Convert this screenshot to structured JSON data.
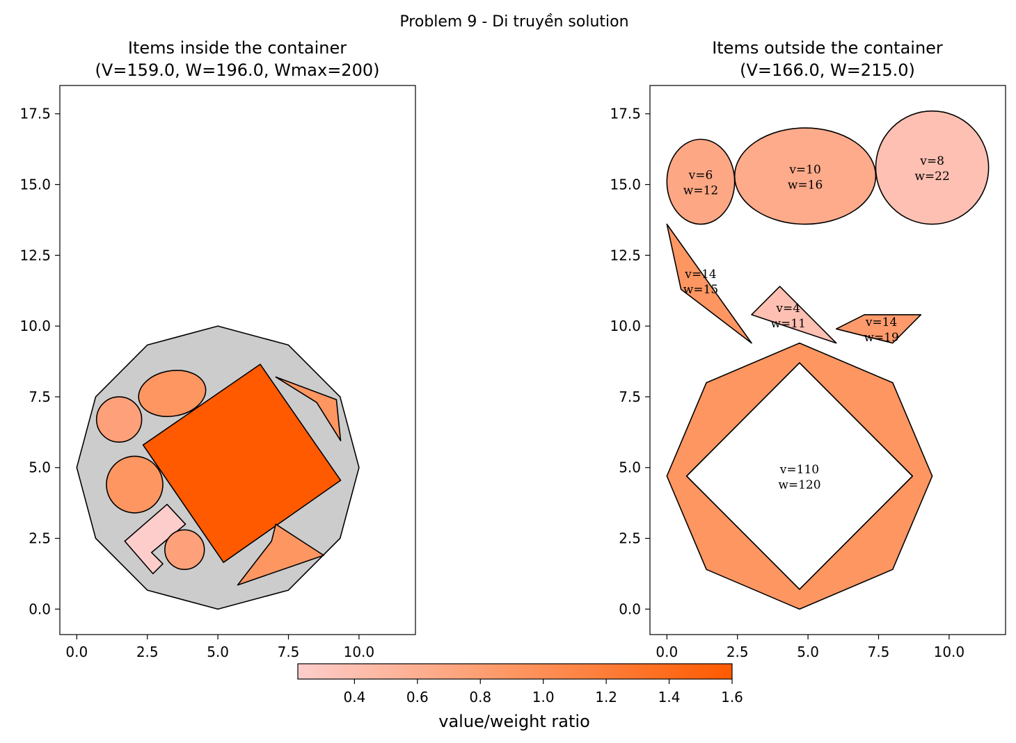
{
  "figure": {
    "suptitle": "Problem 9 - Di truyền solution",
    "colorbar": {
      "label": "value/weight ratio",
      "min": 0.22,
      "max": 1.6,
      "ticks": [
        "0.4",
        "0.6",
        "0.8",
        "1.0",
        "1.2",
        "1.4",
        "1.6"
      ],
      "color_low": "#fdcdcb",
      "color_mid": "#fe9662",
      "color_high": "#ff5a00"
    }
  },
  "chart_data": [
    {
      "type": "scatter",
      "title_line1": "Items inside the container",
      "title_line2": "(V=159.0, W=196.0, Wmax=200)",
      "xlim": [
        -0.6,
        12.0
      ],
      "ylim": [
        -0.9,
        18.5
      ],
      "xticks": [
        0.0,
        2.5,
        5.0,
        7.5,
        10.0
      ],
      "yticks": [
        0.0,
        2.5,
        5.0,
        7.5,
        10.0,
        12.5,
        15.0,
        17.5
      ],
      "container": {
        "color": "#cccccc",
        "points": [
          [
            5.0,
            10.0
          ],
          [
            7.5,
            9.33
          ],
          [
            9.33,
            7.5
          ],
          [
            10.0,
            5.0
          ],
          [
            9.33,
            2.5
          ],
          [
            7.5,
            0.67
          ],
          [
            5.0,
            0.0
          ],
          [
            2.5,
            0.67
          ],
          [
            0.67,
            2.5
          ],
          [
            0.0,
            5.0
          ],
          [
            0.67,
            7.5
          ],
          [
            2.5,
            9.33
          ]
        ]
      },
      "items": [
        {
          "shape": "polygon",
          "color": "#ff5a00",
          "points": [
            [
              6.5,
              8.65
            ],
            [
              9.35,
              4.55
            ],
            [
              5.2,
              1.65
            ],
            [
              2.35,
              5.8
            ]
          ]
        },
        {
          "shape": "polygon",
          "color": "#fe9662",
          "points": [
            [
              7.05,
              8.2
            ],
            [
              9.2,
              7.4
            ],
            [
              9.35,
              5.95
            ],
            [
              8.5,
              7.3
            ]
          ]
        },
        {
          "shape": "polygon",
          "color": "#fe9662",
          "points": [
            [
              7.05,
              3.0
            ],
            [
              8.75,
              1.9
            ],
            [
              5.7,
              0.85
            ],
            [
              6.9,
              2.4
            ]
          ]
        },
        {
          "shape": "polygon",
          "color": "#fdcdcb",
          "points": [
            [
              3.2,
              3.7
            ],
            [
              3.85,
              3.0
            ],
            [
              2.65,
              2.0
            ],
            [
              3.05,
              1.6
            ],
            [
              2.7,
              1.25
            ],
            [
              1.7,
              2.4
            ]
          ]
        },
        {
          "shape": "ellipse",
          "color": "#fe9662",
          "cx": 3.38,
          "cy": 7.62,
          "rx": 1.2,
          "ry": 0.8,
          "angle": -10
        },
        {
          "shape": "ellipse",
          "color": "#fea079",
          "cx": 1.5,
          "cy": 6.7,
          "rx": 0.8,
          "ry": 0.8,
          "angle": 0
        },
        {
          "shape": "ellipse",
          "color": "#fe9662",
          "cx": 2.05,
          "cy": 4.4,
          "rx": 1.0,
          "ry": 1.0,
          "angle": 0
        },
        {
          "shape": "ellipse",
          "color": "#fea079",
          "cx": 3.82,
          "cy": 2.1,
          "rx": 0.7,
          "ry": 0.7,
          "angle": 0
        }
      ]
    },
    {
      "type": "scatter",
      "title_line1": "Items outside the container",
      "title_line2": "(V=166.0, W=215.0)",
      "xlim": [
        -0.6,
        12.0
      ],
      "ylim": [
        -0.9,
        18.5
      ],
      "xticks": [
        0.0,
        2.5,
        5.0,
        7.5,
        10.0
      ],
      "yticks": [
        0.0,
        2.5,
        5.0,
        7.5,
        10.0,
        12.5,
        15.0,
        17.5
      ],
      "items": [
        {
          "shape": "ring",
          "color": "#fe9662",
          "outer": [
            [
              4.7,
              9.4
            ],
            [
              8.0,
              8.0
            ],
            [
              9.4,
              4.7
            ],
            [
              8.0,
              1.4
            ],
            [
              4.7,
              0.0
            ],
            [
              1.4,
              1.4
            ],
            [
              0.0,
              4.7
            ],
            [
              1.4,
              8.0
            ]
          ],
          "inner": [
            [
              4.7,
              8.7
            ],
            [
              8.7,
              4.7
            ],
            [
              4.7,
              0.7
            ],
            [
              0.7,
              4.7
            ]
          ],
          "label_v": "v=110",
          "label_w": "w=120",
          "lx": 4.7,
          "ly": 4.7
        },
        {
          "shape": "ellipse",
          "color": "#fea785",
          "cx": 1.2,
          "cy": 15.1,
          "rx": 1.2,
          "ry": 1.5,
          "angle": 0,
          "label_v": "v=6",
          "label_w": "w=12",
          "lx": 1.2,
          "ly": 15.1
        },
        {
          "shape": "ellipse",
          "color": "#feab8b",
          "cx": 4.9,
          "cy": 15.3,
          "rx": 2.5,
          "ry": 1.7,
          "angle": 0,
          "label_v": "v=10",
          "label_w": "w=16",
          "lx": 4.9,
          "ly": 15.3
        },
        {
          "shape": "ellipse",
          "color": "#fec0b2",
          "cx": 9.4,
          "cy": 15.6,
          "rx": 2.0,
          "ry": 2.0,
          "angle": 0,
          "label_v": "v=8",
          "label_w": "w=22",
          "lx": 9.4,
          "ly": 15.6
        },
        {
          "shape": "polygon",
          "color": "#fe9662",
          "points": [
            [
              0.0,
              13.6
            ],
            [
              0.5,
              11.3
            ],
            [
              3.0,
              9.4
            ]
          ],
          "label_v": "v=14",
          "label_w": "w=15",
          "lx": 1.2,
          "ly": 11.6
        },
        {
          "shape": "polygon",
          "color": "#fec0b2",
          "points": [
            [
              4.0,
              11.4
            ],
            [
              3.0,
              10.4
            ],
            [
              6.0,
              9.4
            ]
          ],
          "label_v": "v=4",
          "label_w": "w=11",
          "lx": 4.3,
          "ly": 10.4
        },
        {
          "shape": "polygon",
          "color": "#fe9a6c",
          "points": [
            [
              7.0,
              10.4
            ],
            [
              9.0,
              10.4
            ],
            [
              8.0,
              9.4
            ],
            [
              6.0,
              9.9
            ]
          ],
          "label_v": "v=14",
          "label_w": "w=19",
          "lx": 7.6,
          "ly": 9.9
        }
      ]
    }
  ]
}
